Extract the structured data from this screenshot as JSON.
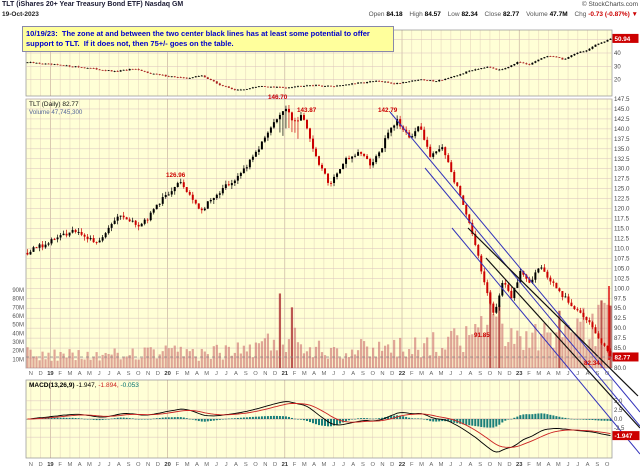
{
  "header": {
    "title": "TLT (iShares 20+ Year Treasury Bond ETF) Nasdaq GM",
    "copyright": "© StockCharts.com",
    "date": "19-Oct-2023",
    "quote_parts": [
      {
        "label": "Open",
        "value": "84.18"
      },
      {
        "label": "High",
        "value": "84.57"
      },
      {
        "label": "Low",
        "value": "82.34"
      },
      {
        "label": "Close",
        "value": "82.77"
      },
      {
        "label": "Volume",
        "value": "47.7M"
      },
      {
        "label": "Chg",
        "value": "-0.73 (-0.87%) ▼"
      }
    ]
  },
  "note": {
    "text": "10/19/23:  The zone at and between the two center black lines has at least some potential to offer support to TLT.  If it does not, then 75+/- goes on the table."
  },
  "legends": {
    "price": "TLT (Daily) 82.77",
    "volume": "Volume 47,745,300",
    "macd_name": "MACD(13,26,9)",
    "macd_v1": "-1.947,",
    "macd_v2": "-1.894,",
    "macd_v3": "-0.053"
  },
  "colors": {
    "pane_bg": "#FFFFD6",
    "up": "#000000",
    "down": "#CC0000",
    "volume_bar": "#CB6A6A",
    "volume_spike": "#B03A3A",
    "macd_hist": "#007070",
    "macd_line": "#000000",
    "macd_signal": "#CC2222",
    "trendline_blue": "#3333BB",
    "trendline_black": "#111111",
    "grid": "#D9BFBF",
    "axis_text": "#444444",
    "last_price_box": "#CC0000"
  },
  "chart_data": [
    {
      "type": "candlestick",
      "pane": "upper-overview",
      "description": "compressed overview pane rising to highs at right edge",
      "y_range": [
        10,
        55
      ],
      "tick_labels": [
        "50",
        "40",
        "30",
        "20"
      ],
      "last_value": "50.94",
      "anchors": [
        [
          0,
          33
        ],
        [
          0.05,
          31
        ],
        [
          0.1,
          29
        ],
        [
          0.15,
          26
        ],
        [
          0.18,
          28
        ],
        [
          0.22,
          24
        ],
        [
          0.27,
          21
        ],
        [
          0.3,
          23
        ],
        [
          0.33,
          16
        ],
        [
          0.36,
          12
        ],
        [
          0.4,
          15
        ],
        [
          0.44,
          14
        ],
        [
          0.48,
          16
        ],
        [
          0.52,
          15
        ],
        [
          0.56,
          17
        ],
        [
          0.6,
          19
        ],
        [
          0.63,
          17
        ],
        [
          0.67,
          20
        ],
        [
          0.7,
          19
        ],
        [
          0.73,
          22
        ],
        [
          0.76,
          27
        ],
        [
          0.79,
          30
        ],
        [
          0.81,
          27
        ],
        [
          0.84,
          33
        ],
        [
          0.86,
          31
        ],
        [
          0.88,
          36
        ],
        [
          0.9,
          38
        ],
        [
          0.92,
          35
        ],
        [
          0.94,
          40
        ],
        [
          0.96,
          42
        ],
        [
          0.975,
          46
        ],
        [
          0.99,
          49
        ],
        [
          1,
          50.9
        ]
      ]
    },
    {
      "type": "candlestick",
      "pane": "main-price",
      "symbol": "TLT",
      "timeframe": "Daily",
      "last_price": "82.77",
      "last_low": "82.34",
      "y_range": [
        80,
        147.5
      ],
      "price_tick_labels": [
        "147.5",
        "145.0",
        "142.5",
        "140.0",
        "137.5",
        "135.0",
        "132.5",
        "130.0",
        "127.5",
        "125.0",
        "122.5",
        "120.0",
        "117.5",
        "115.0",
        "112.5",
        "110.0",
        "107.5",
        "105.0",
        "102.5",
        "100.0",
        "97.5",
        "95.0",
        "92.5",
        "90.0",
        "87.5",
        "85.0",
        "82.5",
        "80.0"
      ],
      "volume_tick_labels": [
        "90M",
        "80M",
        "70M",
        "60M",
        "50M",
        "40M",
        "30M",
        "20M",
        "10M"
      ],
      "x_tokens": [
        "N",
        "D",
        "19",
        "F",
        "M",
        "A",
        "M",
        "J",
        "J",
        "A",
        "S",
        "O",
        "N",
        "D",
        "20",
        "F",
        "M",
        "A",
        "M",
        "J",
        "J",
        "A",
        "S",
        "O",
        "N",
        "D",
        "21",
        "F",
        "M",
        "A",
        "M",
        "J",
        "J",
        "A",
        "S",
        "O",
        "N",
        "D",
        "22",
        "F",
        "M",
        "A",
        "M",
        "J",
        "J",
        "A",
        "S",
        "O",
        "N",
        "D",
        "23",
        "F",
        "M",
        "A",
        "M",
        "J",
        "J",
        "A",
        "S",
        "O"
      ],
      "close_anchors": [
        [
          0,
          109
        ],
        [
          0.05,
          112.5
        ],
        [
          0.084,
          114.5
        ],
        [
          0.118,
          111.5
        ],
        [
          0.16,
          118.5
        ],
        [
          0.195,
          115.5
        ],
        [
          0.237,
          123.5
        ],
        [
          0.263,
          126.5
        ],
        [
          0.297,
          119.5
        ],
        [
          0.331,
          124.5
        ],
        [
          0.365,
          128.5
        ],
        [
          0.396,
          135
        ],
        [
          0.42,
          140.5
        ],
        [
          0.442,
          146
        ],
        [
          0.456,
          141
        ],
        [
          0.471,
          144
        ],
        [
          0.493,
          133.5
        ],
        [
          0.519,
          126
        ],
        [
          0.544,
          132
        ],
        [
          0.57,
          134.5
        ],
        [
          0.59,
          130.5
        ],
        [
          0.618,
          138.5
        ],
        [
          0.634,
          142
        ],
        [
          0.655,
          137.5
        ],
        [
          0.672,
          140.5
        ],
        [
          0.692,
          133
        ],
        [
          0.711,
          135.5
        ],
        [
          0.731,
          127.5
        ],
        [
          0.748,
          121
        ],
        [
          0.765,
          112.5
        ],
        [
          0.787,
          99.5
        ],
        [
          0.799,
          93.5
        ],
        [
          0.816,
          101.5
        ],
        [
          0.83,
          97.5
        ],
        [
          0.846,
          104
        ],
        [
          0.862,
          101
        ],
        [
          0.879,
          105.5
        ],
        [
          0.896,
          102
        ],
        [
          0.913,
          99
        ],
        [
          0.93,
          96.5
        ],
        [
          0.947,
          94
        ],
        [
          0.964,
          91.5
        ],
        [
          0.977,
          88.5
        ],
        [
          0.99,
          85.5
        ],
        [
          1,
          82.8
        ]
      ],
      "volume_anchors": [
        [
          0,
          16
        ],
        [
          0.1,
          14
        ],
        [
          0.2,
          17
        ],
        [
          0.3,
          18
        ],
        [
          0.38,
          22
        ],
        [
          0.42,
          30
        ],
        [
          0.44,
          38
        ],
        [
          0.47,
          30
        ],
        [
          0.5,
          24
        ],
        [
          0.55,
          22
        ],
        [
          0.6,
          24
        ],
        [
          0.65,
          26
        ],
        [
          0.7,
          28
        ],
        [
          0.75,
          34
        ],
        [
          0.79,
          46
        ],
        [
          0.82,
          38
        ],
        [
          0.86,
          36
        ],
        [
          0.9,
          40
        ],
        [
          0.94,
          44
        ],
        [
          0.97,
          50
        ],
        [
          1,
          58
        ]
      ],
      "volume_spikes": [
        [
          0.435,
          86
        ],
        [
          0.455,
          70
        ],
        [
          0.795,
          88
        ],
        [
          0.807,
          72
        ],
        [
          0.91,
          66
        ],
        [
          0.985,
          78
        ],
        [
          0.998,
          72
        ]
      ],
      "swing_labels": [
        {
          "x": 166,
          "y": 177,
          "text": "126.96"
        },
        {
          "x": 268,
          "y": 99,
          "text": "146.70"
        },
        {
          "x": 297,
          "y": 112,
          "text": "143.87"
        },
        {
          "x": 378,
          "y": 112,
          "text": "142.79"
        },
        {
          "x": 474,
          "y": 337,
          "text": "91.85"
        },
        {
          "x": 584,
          "y": 365,
          "text": "82.34"
        }
      ]
    },
    {
      "type": "macd",
      "pane": "lower-indicator",
      "params": "13,26,9",
      "tick_labels": [
        "5.0",
        "2.5",
        "0.0",
        "-2.5",
        "-5.0"
      ],
      "last_value": "-1.947"
    }
  ],
  "annotations": {
    "lines": [
      {
        "name": "blue-channel-upper",
        "color": "#3333BB",
        "x1": 390,
        "y1": 112,
        "x2": 640,
        "y2": 412,
        "width": 1
      },
      {
        "name": "blue-channel-mid",
        "color": "#3333BB",
        "x1": 425,
        "y1": 168,
        "x2": 640,
        "y2": 426,
        "width": 1
      },
      {
        "name": "blue-channel-lower",
        "color": "#3333BB",
        "x1": 452,
        "y1": 228,
        "x2": 640,
        "y2": 454,
        "width": 1
      },
      {
        "name": "black-support-upper",
        "color": "#111111",
        "x1": 468,
        "y1": 228,
        "x2": 638,
        "y2": 396,
        "width": 1.2
      },
      {
        "name": "black-support-lower",
        "color": "#111111",
        "x1": 486,
        "y1": 258,
        "x2": 640,
        "y2": 428,
        "width": 1.2
      },
      {
        "name": "red-marker-line",
        "color": "#DD0000",
        "x1": 609,
        "y1": 286,
        "x2": 609,
        "y2": 360,
        "width": 1.4
      },
      {
        "name": "last-price-dashed-line",
        "color": "#888888",
        "x1": 26,
        "y1": 357,
        "x2": 612,
        "y2": 357,
        "width": 0.8,
        "dash": "3,3"
      }
    ]
  }
}
